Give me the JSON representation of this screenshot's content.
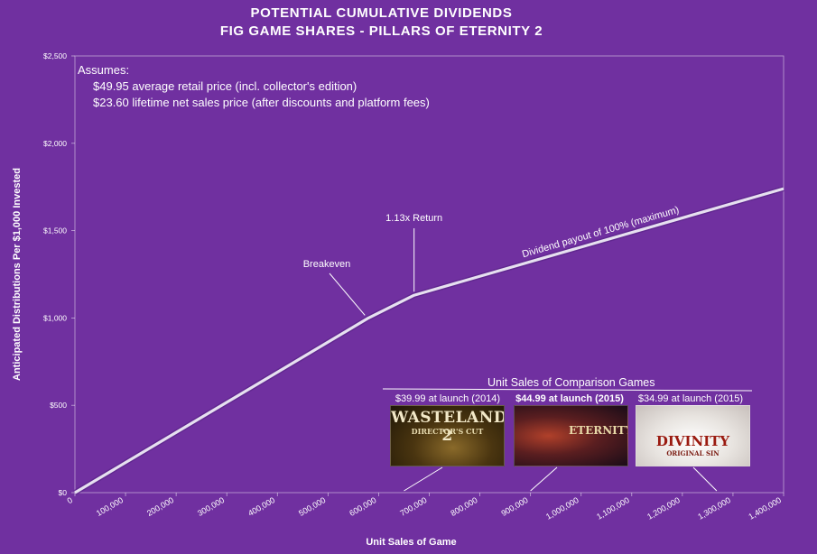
{
  "title_line1": "POTENTIAL CUMULATIVE DIVIDENDS",
  "title_line2": "FIG GAME SHARES - PILLARS OF ETERNITY 2",
  "assumptions": {
    "heading": "Assumes:",
    "line1": "$49.95 average retail price (incl. collector's edition)",
    "line2": "$23.60 lifetime net sales price (after discounts and platform fees)"
  },
  "annotations": {
    "breakeven": "Breakeven",
    "return": "1.13x Return",
    "max_payout": "Dividend payout of 100% (maximum)"
  },
  "comparison": {
    "title": "Unit Sales of Comparison Games",
    "games": [
      {
        "price_label": "$39.99 at launch (2014)",
        "logo_text": "WASTELAND 2",
        "logo_sub": "DIRECTOR'S CUT",
        "units": 650000
      },
      {
        "price_label": "$44.99 at launch (2015)",
        "logo_text": "ETERNITY",
        "logo_sub": "",
        "units": 900000
      },
      {
        "price_label": "$34.99 at launch (2015)",
        "logo_text": "DIVINITY",
        "logo_sub": "ORIGINAL SIN",
        "units": 1250000
      }
    ]
  },
  "colors": {
    "background": "#7030A0",
    "line": "#E6E0F0",
    "line_shadow": "#5A2488",
    "text": "#FFFFFF"
  },
  "chart_data": {
    "type": "line",
    "title": "POTENTIAL CUMULATIVE DIVIDENDS",
    "subtitle": "FIG GAME SHARES - PILLARS OF ETERNITY 2",
    "xlabel": "Unit Sales of Game",
    "ylabel": "Anticipated Distributions Per $1,000 Invested",
    "xlim": [
      0,
      1400000
    ],
    "ylim": [
      0,
      2500
    ],
    "x_ticks": [
      "0",
      "100,000",
      "200,000",
      "300,000",
      "400,000",
      "500,000",
      "600,000",
      "700,000",
      "800,000",
      "900,000",
      "1,000,000",
      "1,100,000",
      "1,200,000",
      "1,300,000",
      "1,400,000"
    ],
    "y_ticks": [
      "$0",
      "$500",
      "$1,000",
      "$1,500",
      "$2,000",
      "$2,500"
    ],
    "grid": false,
    "series": [
      {
        "x": [
          0,
          580000,
          670000,
          1400000
        ],
        "y": [
          0,
          1000,
          1130,
          1740
        ]
      }
    ]
  }
}
